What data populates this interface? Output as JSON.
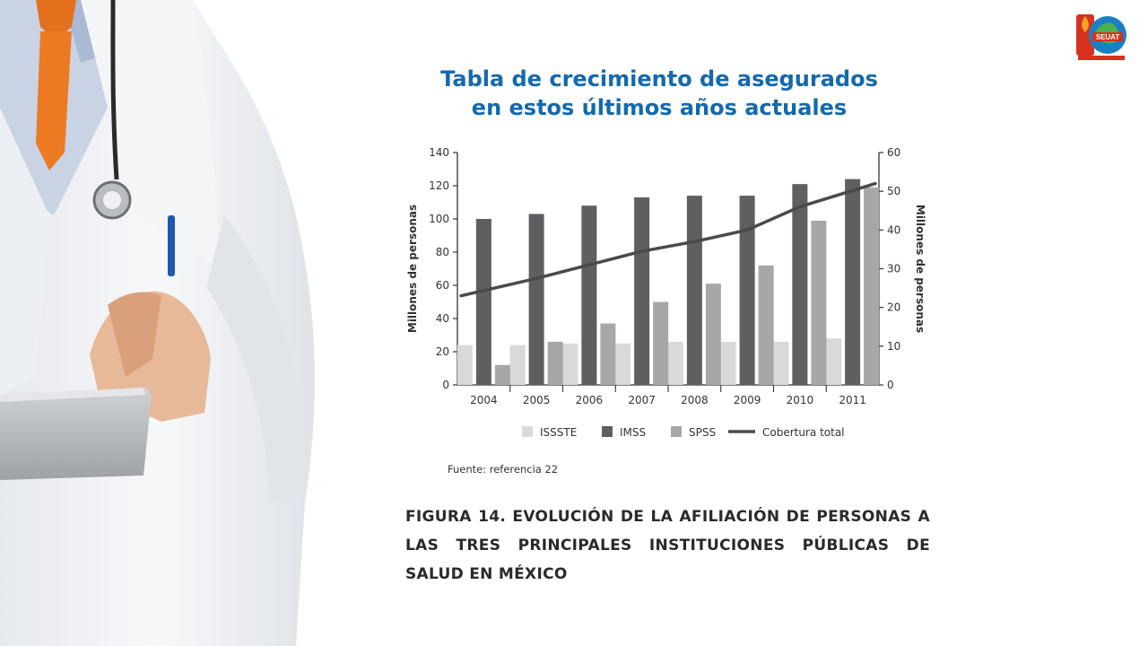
{
  "slide": {
    "title_line1": "Tabla de crecimiento de asegurados",
    "title_line2": "en estos últimos años actuales",
    "logo_text": "SEUAT",
    "source_note": "Fuente: referencia 22",
    "caption": "Figura 14. Evolución de la afiliación de personas a las tres principales instituciones públicas de salud en México"
  },
  "colors": {
    "title": "#1469ad",
    "issste": "#d9d9d9",
    "imss": "#5f5f61",
    "spss": "#a7a7a9",
    "cobertura": "#4a4a4c"
  },
  "icons": [
    "doctor-photo",
    "seuat-logo-icon"
  ],
  "chart_data": {
    "type": "bar",
    "categories": [
      "2004",
      "2005",
      "2006",
      "2007",
      "2008",
      "2009",
      "2010",
      "2011"
    ],
    "series": [
      {
        "name": "ISSSTE",
        "values": [
          24,
          24,
          25,
          25,
          26,
          26,
          26,
          28
        ]
      },
      {
        "name": "IMSS",
        "values": [
          100,
          103,
          108,
          113,
          114,
          114,
          121,
          124
        ]
      },
      {
        "name": "SPSS",
        "values": [
          12,
          26,
          37,
          50,
          61,
          72,
          99,
          119
        ]
      }
    ],
    "line_series": {
      "name": "Cobertura total",
      "axis": "right",
      "values": [
        23,
        27.5,
        31,
        34.5,
        37,
        40,
        46,
        52
      ]
    },
    "ylabel": "Millones de personas",
    "ylabel_right": "Millones de personas",
    "ylim": [
      0,
      140
    ],
    "ylim_right": [
      0,
      60
    ],
    "yticks": [
      0,
      20,
      40,
      60,
      80,
      100,
      120,
      140
    ],
    "yticks_right": [
      0,
      10,
      20,
      30,
      40,
      50,
      60
    ],
    "grid": false,
    "legend_position": "bottom"
  }
}
